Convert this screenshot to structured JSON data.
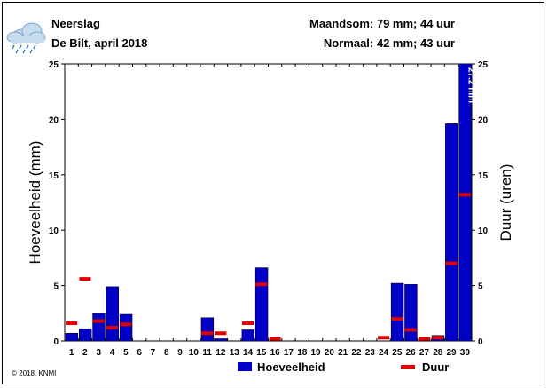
{
  "header": {
    "title": "Neerslag",
    "subtitle": "De Bilt, april 2018",
    "month_sum": "Maandsom: 79 mm; 44 uur",
    "normal": "Normaal: 42 mm; 43 uur"
  },
  "copyright": "© 2018, KNMI",
  "icon": "rain-cloud-icon",
  "colors": {
    "amount": "#0000c8",
    "duration": "#e00000"
  },
  "chart_data": {
    "type": "bar",
    "categories": [
      "1",
      "2",
      "3",
      "4",
      "5",
      "6",
      "7",
      "8",
      "9",
      "10",
      "11",
      "12",
      "13",
      "14",
      "15",
      "16",
      "17",
      "18",
      "19",
      "20",
      "21",
      "22",
      "23",
      "24",
      "25",
      "26",
      "27",
      "28",
      "29",
      "30"
    ],
    "series": [
      {
        "name": "Hoeveelheid",
        "unit": "mm",
        "values": [
          0.7,
          1.1,
          2.5,
          4.9,
          2.4,
          0,
          0,
          0,
          0,
          0,
          2.1,
          0.2,
          0,
          1.0,
          6.6,
          0,
          0,
          0,
          0,
          0,
          0,
          0,
          0,
          0,
          5.2,
          5.1,
          0,
          0.5,
          19.6,
          27.2
        ]
      },
      {
        "name": "Duur",
        "unit": "uur",
        "values": [
          1.6,
          5.6,
          1.8,
          1.2,
          1.5,
          0,
          0,
          0,
          0,
          0,
          0.7,
          0.7,
          0,
          1.6,
          5.1,
          0.2,
          0,
          0,
          0,
          0,
          0,
          0,
          0,
          0.3,
          2.0,
          1.0,
          0.2,
          0.3,
          7.0,
          13.2
        ]
      }
    ],
    "ylabel": "Hoeveelheid (mm)",
    "y2label": "Duur (uren)",
    "ylim": [
      0,
      25
    ],
    "yticks": [
      0,
      5,
      10,
      15,
      20,
      25
    ],
    "clipped_label": "27.2 mm",
    "legend": [
      "Hoeveelheid",
      "Duur"
    ],
    "legend_position": "bottom"
  }
}
